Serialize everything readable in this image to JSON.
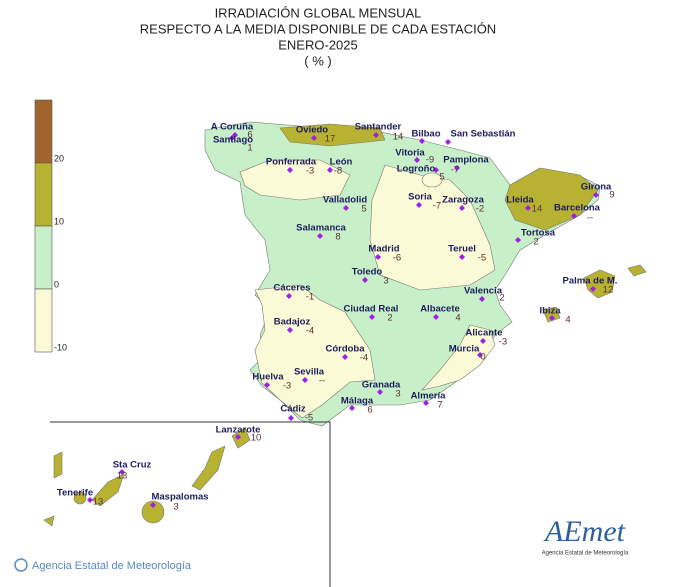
{
  "title": [
    "IRRADIACIÓN GLOBAL MENSUAL",
    "RESPECTO A LA MEDIA DISPONIBLE DE CADA ESTACIÓN",
    "ENERO-2025",
    "( % )"
  ],
  "legend": {
    "ticks": [
      20,
      10,
      0,
      -10
    ],
    "colors": [
      "#a0642e",
      "#b8b232",
      "#c8f0c8",
      "#fbfad6"
    ]
  },
  "stations": [
    {
      "name": "A Coruña",
      "value": 6
    },
    {
      "name": "Santiago",
      "value": 1
    },
    {
      "name": "Oviedo",
      "value": 17
    },
    {
      "name": "Santander",
      "value": 14
    },
    {
      "name": "Bilbao"
    },
    {
      "name": "San Sebastián"
    },
    {
      "name": "Vitoria",
      "value": -9
    },
    {
      "name": "Pamplona",
      "value": -7
    },
    {
      "name": "Logroño",
      "value": 5
    },
    {
      "name": "Ponferrada",
      "value": -3
    },
    {
      "name": "León",
      "value": -8
    },
    {
      "name": "Valladolid",
      "value": 5
    },
    {
      "name": "Soria",
      "value": -7
    },
    {
      "name": "Zaragoza",
      "value": -2
    },
    {
      "name": "Lleida",
      "value": 14
    },
    {
      "name": "Girona",
      "value": 9
    },
    {
      "name": "Barcelona",
      "value": "--"
    },
    {
      "name": "Tortosa",
      "value": 2
    },
    {
      "name": "Salamanca",
      "value": 8
    },
    {
      "name": "Madrid",
      "value": -6
    },
    {
      "name": "Teruel",
      "value": -5
    },
    {
      "name": "Toledo",
      "value": 3
    },
    {
      "name": "Cáceres",
      "value": -1
    },
    {
      "name": "Valencia",
      "value": 2
    },
    {
      "name": "Ciudad Real",
      "value": 2
    },
    {
      "name": "Albacete",
      "value": 4
    },
    {
      "name": "Palma de M.",
      "value": 12
    },
    {
      "name": "Ibiza",
      "value": 4
    },
    {
      "name": "Badajoz",
      "value": -4
    },
    {
      "name": "Alicante",
      "value": -3
    },
    {
      "name": "Córdoba",
      "value": -4
    },
    {
      "name": "Murcia",
      "value": 0
    },
    {
      "name": "Sevilla",
      "value": "--"
    },
    {
      "name": "Huelva",
      "value": -3
    },
    {
      "name": "Granada",
      "value": 3
    },
    {
      "name": "Almería",
      "value": 7
    },
    {
      "name": "Málaga",
      "value": 6
    },
    {
      "name": "Cádiz",
      "value": -5
    },
    {
      "name": "Lanzarote",
      "value": 10
    },
    {
      "name": "Sta Cruz",
      "value": 13
    },
    {
      "name": "Tenerife",
      "value": 13
    },
    {
      "name": "Maspalomas",
      "value": 3
    }
  ],
  "footer": "Agencia Estatal de Meteorología",
  "logo": {
    "name": "AEmet",
    "subtitle": "Agencia Estatal de Meteorología"
  }
}
